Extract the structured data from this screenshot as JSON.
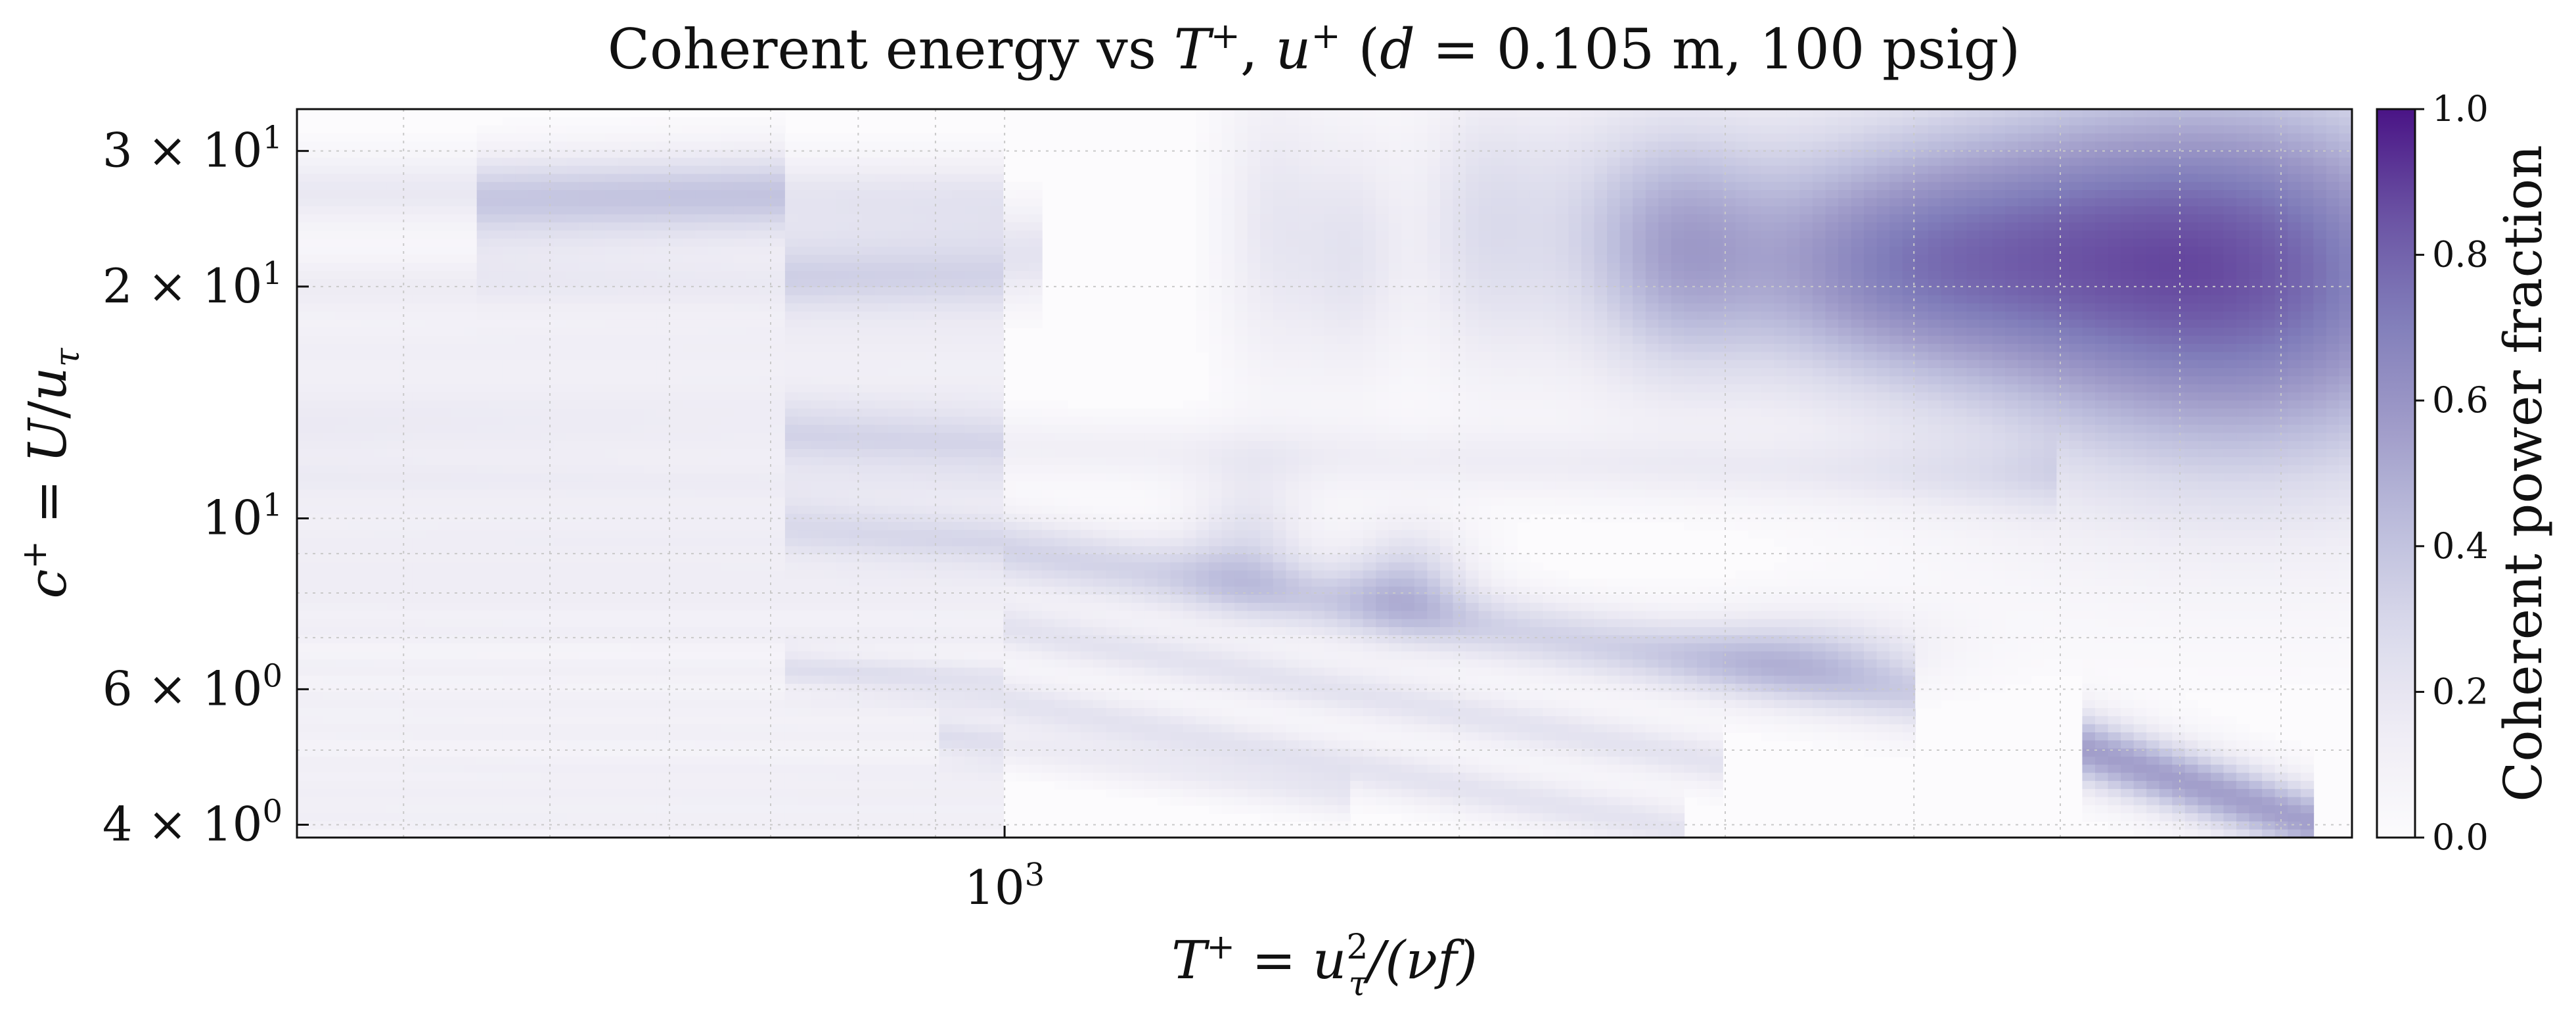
{
  "chart_data": {
    "type": "heatmap",
    "title_parts": {
      "prefix": "Coherent energy vs ",
      "tplus_sym": "T",
      "tplus_sup": "+",
      "comma": ", ",
      "uplus_sym": "u",
      "uplus_sup": "+",
      "paren": " (",
      "d_sym": "d",
      "rest": " = 0.105 m, 100 psig)"
    },
    "xlabel_parts": {
      "T": "T",
      "Tsup": "+",
      "eq": " = ",
      "u": "u",
      "usup": "2",
      "usub": "τ",
      "rest": "/(νf)"
    },
    "ylabel_parts": {
      "c": "c",
      "csup": "+",
      "eq": " = ",
      "U": "U",
      "slash": "/",
      "u": "u",
      "usub": "τ"
    },
    "colorbar_label": "Coherent power fraction",
    "colorbar_ticks": [
      "0.0",
      "0.2",
      "0.4",
      "0.6",
      "0.8",
      "1.0"
    ],
    "colormap": [
      "#fcfbfd",
      "#efedf5",
      "#dadaeb",
      "#bcbddc",
      "#9e9ac8",
      "#807dba",
      "#6a51a3",
      "#4a1486"
    ],
    "x_scale": "log",
    "y_scale": "log",
    "xlim": [
      340,
      7800
    ],
    "ylim": [
      3.85,
      34
    ],
    "x_ticks": [
      {
        "value": 1000,
        "base": "10",
        "exp": "3"
      }
    ],
    "y_ticks": [
      {
        "value": 30,
        "mant": "3 × 10",
        "exp": "1"
      },
      {
        "value": 20,
        "mant": "2 × 10",
        "exp": "1"
      },
      {
        "value": 10,
        "mant": "10",
        "exp": "1"
      },
      {
        "value": 6,
        "mant": "6 × 10",
        "exp": "0"
      },
      {
        "value": 4,
        "mant": "4 × 10",
        "exp": "0"
      }
    ],
    "grid": true,
    "bands": [
      {
        "x": [
          340,
          1000
        ],
        "y0": 26.5,
        "y1": 26.5,
        "w": 0.035,
        "v": 0.18
      },
      {
        "x": [
          340,
          1000
        ],
        "y0": 20,
        "y1": 20,
        "w": 0.03,
        "v": 0.15
      },
      {
        "x": [
          340,
          1000
        ],
        "y0": 16.5,
        "y1": 17,
        "w": 0.03,
        "v": 0.12
      },
      {
        "x": [
          340,
          1000
        ],
        "y0": 14,
        "y1": 14.5,
        "w": 0.03,
        "v": 0.12
      },
      {
        "x": [
          340,
          1000
        ],
        "y0": 12.5,
        "y1": 12.5,
        "w": 0.03,
        "v": 0.12
      },
      {
        "x": [
          340,
          1000
        ],
        "y0": 11.2,
        "y1": 11,
        "w": 0.02,
        "v": 0.12
      },
      {
        "x": [
          340,
          1000
        ],
        "y0": 10.2,
        "y1": 10,
        "w": 0.02,
        "v": 0.1
      },
      {
        "x": [
          340,
          1000
        ],
        "y0": 9.3,
        "y1": 9.2,
        "w": 0.018,
        "v": 0.12
      },
      {
        "x": [
          340,
          1000
        ],
        "y0": 8.5,
        "y1": 8.4,
        "w": 0.018,
        "v": 0.12
      },
      {
        "x": [
          340,
          1000
        ],
        "y0": 7.8,
        "y1": 7.7,
        "w": 0.018,
        "v": 0.12
      },
      {
        "x": [
          340,
          1000
        ],
        "y0": 7.1,
        "y1": 7,
        "w": 0.015,
        "v": 0.12
      },
      {
        "x": [
          340,
          1000
        ],
        "y0": 6.4,
        "y1": 6.3,
        "w": 0.015,
        "v": 0.12
      },
      {
        "x": [
          340,
          1000
        ],
        "y0": 5.8,
        "y1": 5.7,
        "w": 0.015,
        "v": 0.12
      },
      {
        "x": [
          340,
          1000
        ],
        "y0": 5.3,
        "y1": 5.2,
        "w": 0.015,
        "v": 0.12
      },
      {
        "x": [
          340,
          1000
        ],
        "y0": 4.8,
        "y1": 4.7,
        "w": 0.015,
        "v": 0.12
      },
      {
        "x": [
          340,
          1000
        ],
        "y0": 4.4,
        "y1": 4.35,
        "w": 0.015,
        "v": 0.12
      },
      {
        "x": [
          340,
          1000
        ],
        "y0": 4.05,
        "y1": 4.0,
        "w": 0.015,
        "v": 0.12
      },
      {
        "x": [
          450,
          720
        ],
        "y0": 25,
        "y1": 26,
        "w": 0.05,
        "v": 0.22
      },
      {
        "x": [
          720,
          1050
        ],
        "y0": 21.5,
        "y1": 22,
        "w": 0.045,
        "v": 0.22
      },
      {
        "x": [
          720,
          1000
        ],
        "y0": 12.8,
        "y1": 12.4,
        "w": 0.03,
        "v": 0.18
      },
      {
        "x": [
          1000,
          5000
        ],
        "y0": 12.4,
        "y1": 11.2,
        "w": 0.03,
        "v": 0.12
      },
      {
        "x": [
          720,
          1000
        ],
        "y0": 9.8,
        "y1": 9.3,
        "w": 0.025,
        "v": 0.16
      },
      {
        "x": [
          1000,
          4000
        ],
        "y0": 9.1,
        "y1": 5.9,
        "w": 0.035,
        "v": 0.32
      },
      {
        "x": [
          1000,
          3000
        ],
        "y0": 7.2,
        "y1": 4.8,
        "w": 0.025,
        "v": 0.22
      },
      {
        "x": [
          720,
          1000
        ],
        "y0": 6.4,
        "y1": 6.0,
        "w": 0.02,
        "v": 0.14
      },
      {
        "x": [
          1000,
          2800
        ],
        "y0": 5.8,
        "y1": 3.95,
        "w": 0.025,
        "v": 0.22
      },
      {
        "x": [
          900,
          1700
        ],
        "y0": 5.2,
        "y1": 4.3,
        "w": 0.02,
        "v": 0.14
      },
      {
        "x": [
          5200,
          7400
        ],
        "y0": 5.0,
        "y1": 4.0,
        "w": 0.035,
        "v": 0.55
      }
    ],
    "blobs": [
      {
        "x": 6350,
        "y": 22,
        "sx": 0.12,
        "sy": 0.17,
        "v": 0.55
      },
      {
        "x": 6800,
        "y": 18,
        "sx": 0.16,
        "sy": 0.2,
        "v": 0.3
      },
      {
        "x": 2800,
        "y": 22,
        "sx": 0.04,
        "sy": 0.12,
        "v": 0.3
      },
      {
        "x": 3500,
        "y": 20,
        "sx": 0.07,
        "sy": 0.1,
        "v": 0.25
      },
      {
        "x": 4300,
        "y": 20.5,
        "sx": 0.08,
        "sy": 0.1,
        "v": 0.25
      },
      {
        "x": 1500,
        "y": 24,
        "sx": 0.025,
        "sy": 0.15,
        "v": 0.18
      },
      {
        "x": 1700,
        "y": 22,
        "sx": 0.025,
        "sy": 0.12,
        "v": 0.2
      },
      {
        "x": 2050,
        "y": 24,
        "sx": 0.03,
        "sy": 0.14,
        "v": 0.18
      },
      {
        "x": 2400,
        "y": 23,
        "sx": 0.05,
        "sy": 0.14,
        "v": 0.18
      },
      {
        "x": 1450,
        "y": 9.5,
        "sx": 0.03,
        "sy": 0.06,
        "v": 0.22
      },
      {
        "x": 1850,
        "y": 8.5,
        "sx": 0.03,
        "sy": 0.05,
        "v": 0.28
      },
      {
        "x": 3400,
        "y": 6.8,
        "sx": 0.06,
        "sy": 0.04,
        "v": 0.22
      },
      {
        "x": 3800,
        "y": 27,
        "sx": 0.12,
        "sy": 0.1,
        "v": 0.2
      }
    ]
  }
}
